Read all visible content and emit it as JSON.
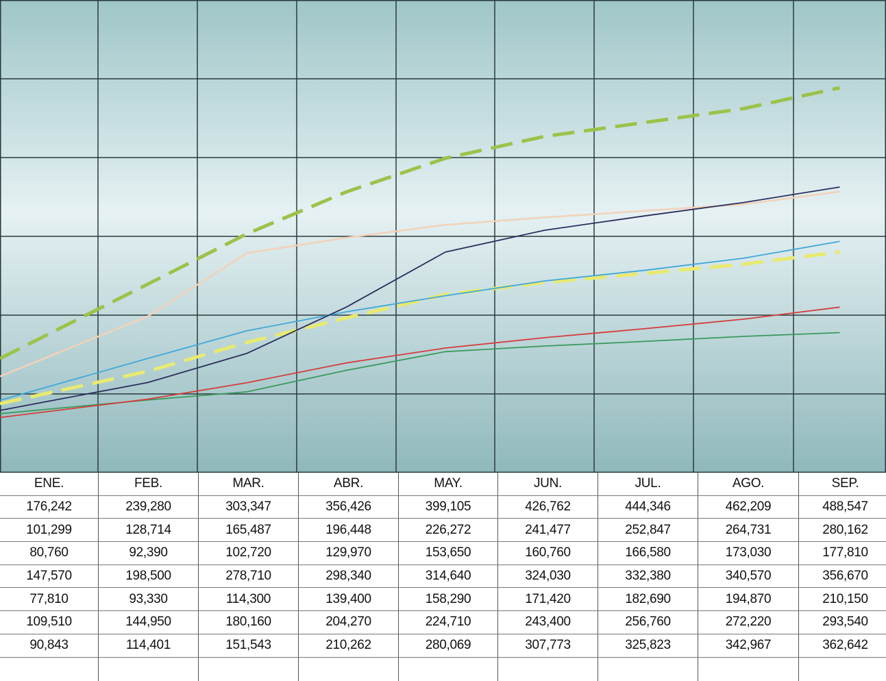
{
  "chart_data": {
    "type": "line",
    "categories": [
      "ENE.",
      "FEB.",
      "MAR.",
      "ABR.",
      "MAY.",
      "JUN.",
      "JUL.",
      "AGO.",
      "SEP."
    ],
    "ylim": [
      0,
      600000
    ],
    "grid": true,
    "legend": "none",
    "series": [
      {
        "color": "#9cc24a",
        "dash": true,
        "width": 5,
        "values": [
          176242,
          239280,
          303347,
          356426,
          399105,
          426762,
          444346,
          462209,
          488547
        ]
      },
      {
        "color": "#e8ea70",
        "dash": true,
        "width": 5,
        "values": [
          101299,
          128714,
          165487,
          196448,
          226272,
          241477,
          252847,
          264731,
          280162
        ]
      },
      {
        "color": "#3a9a5e",
        "dash": false,
        "width": 1.8,
        "values": [
          80760,
          92390,
          102720,
          129970,
          153650,
          160760,
          166580,
          173030,
          177810
        ]
      },
      {
        "color": "#f2d2b8",
        "dash": false,
        "width": 2.5,
        "values": [
          147570,
          198500,
          278710,
          298340,
          314640,
          324030,
          332380,
          340570,
          356670
        ]
      },
      {
        "color": "#d63c3c",
        "dash": false,
        "width": 1.8,
        "values": [
          77810,
          93330,
          114300,
          139400,
          158290,
          171420,
          182690,
          194870,
          210150
        ]
      },
      {
        "color": "#3fa8d8",
        "dash": false,
        "width": 1.8,
        "values": [
          109510,
          144950,
          180160,
          204270,
          224710,
          243400,
          256760,
          272220,
          293540
        ]
      },
      {
        "color": "#2a2f5c",
        "dash": false,
        "width": 1.8,
        "values": [
          90843,
          114401,
          151543,
          210262,
          280069,
          307773,
          325823,
          342967,
          362642
        ]
      }
    ],
    "table_rows": [
      [
        "176,242",
        "239,280",
        "303,347",
        "356,426",
        "399,105",
        "426,762",
        "444,346",
        "462,209",
        "488,547"
      ],
      [
        "101,299",
        "128,714",
        "165,487",
        "196,448",
        "226,272",
        "241,477",
        "252,847",
        "264,731",
        "280,162"
      ],
      [
        "80,760",
        "92,390",
        "102,720",
        "129,970",
        "153,650",
        "160,760",
        "166,580",
        "173,030",
        "177,810"
      ],
      [
        "147,570",
        "198,500",
        "278,710",
        "298,340",
        "314,640",
        "324,030",
        "332,380",
        "340,570",
        "356,670"
      ],
      [
        "77,810",
        "93,330",
        "114,300",
        "139,400",
        "158,290",
        "171,420",
        "182,690",
        "194,870",
        "210,150"
      ],
      [
        "109,510",
        "144,950",
        "180,160",
        "204,270",
        "224,710",
        "243,400",
        "256,760",
        "272,220",
        "293,540"
      ],
      [
        "90,843",
        "114,401",
        "151,543",
        "210,262",
        "280,069",
        "307,773",
        "325,823",
        "342,967",
        "362,642"
      ]
    ]
  }
}
